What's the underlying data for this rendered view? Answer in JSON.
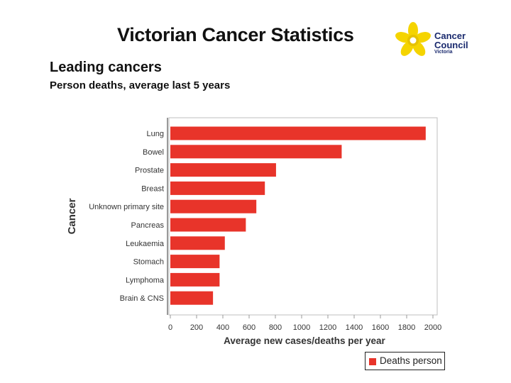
{
  "header": {
    "title": "Victorian Cancer Statistics",
    "section_title": "Leading cancers",
    "subtitle": "Person deaths, average last 5 years"
  },
  "logo": {
    "line1": "Cancer",
    "line2": "Council",
    "line3": "Victoria",
    "icon": "daffodil-icon",
    "color": "#f5d400",
    "text_color": "#1a2a6e"
  },
  "chart_data": {
    "type": "bar",
    "orientation": "horizontal",
    "categories": [
      "Lung",
      "Bowel",
      "Prostate",
      "Breast",
      "Unknown primary site",
      "Pancreas",
      "Leukaemia",
      "Stomach",
      "Lymphoma",
      "Brain & CNS"
    ],
    "series": [
      {
        "name": "Deaths person",
        "values": [
          1945,
          1305,
          805,
          720,
          655,
          575,
          415,
          375,
          375,
          325
        ],
        "color": "#e8342a"
      }
    ],
    "xlabel": "Average new cases/deaths per year",
    "ylabel": "Cancer",
    "xlim": [
      0,
      2000
    ],
    "xticks": [
      0,
      200,
      400,
      600,
      800,
      1000,
      1200,
      1400,
      1600,
      1800,
      2000
    ],
    "grid": false,
    "legend_position": "bottom-right"
  }
}
